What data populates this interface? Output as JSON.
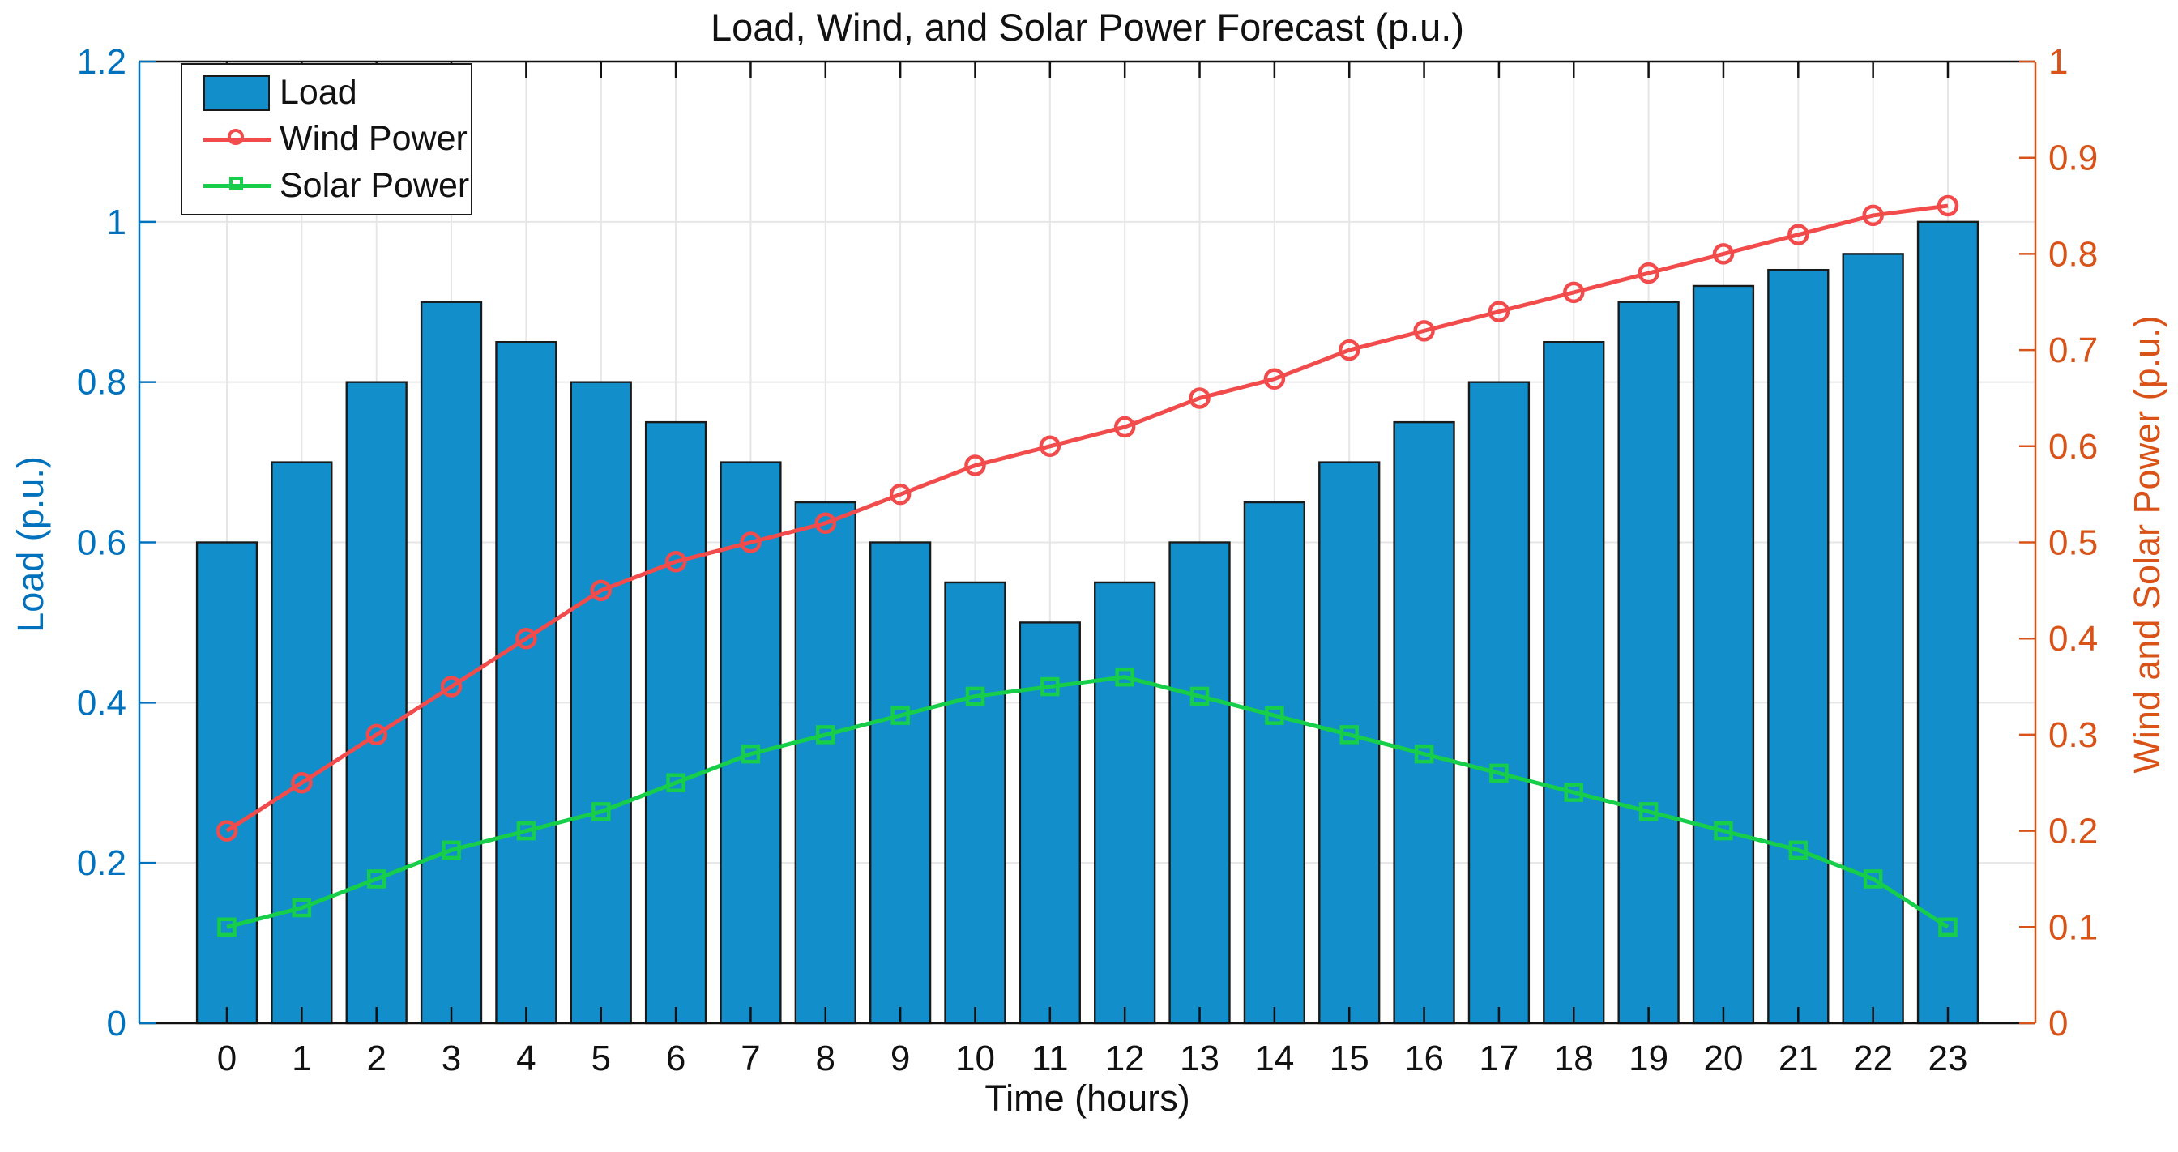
{
  "title": "Load, Wind, and Solar Power Forecast (p.u.)",
  "xlabel": "Time (hours)",
  "ylabel_left": "Load (p.u.)",
  "ylabel_right": "Wind and Solar Power (p.u.)",
  "legend": {
    "load_label": "Load",
    "wind_label": "Wind Power",
    "solar_label": "Solar Power"
  },
  "colors": {
    "bar_fill": "#128FCB",
    "bar_edge": "#1a1a1a",
    "wind_line": "#F24B4B",
    "solar_line": "#16CE49",
    "left_axis": "#0072BD",
    "right_axis": "#D95319",
    "grid": "#E6E6E6",
    "axis_black": "#111111",
    "text": "#111111"
  },
  "chart_data": {
    "type": "bar",
    "subtype": "bar + two lines, dual y-axes",
    "title": "Load, Wind, and Solar Power Forecast (p.u.)",
    "xlabel": "Time (hours)",
    "x": [
      0,
      1,
      2,
      3,
      4,
      5,
      6,
      7,
      8,
      9,
      10,
      11,
      12,
      13,
      14,
      15,
      16,
      17,
      18,
      19,
      20,
      21,
      22,
      23
    ],
    "xtick_labels": [
      "0",
      "1",
      "2",
      "3",
      "4",
      "5",
      "6",
      "7",
      "8",
      "9",
      "10",
      "11",
      "12",
      "13",
      "14",
      "15",
      "16",
      "17",
      "18",
      "19",
      "20",
      "21",
      "22",
      "23"
    ],
    "series": [
      {
        "name": "Load",
        "type": "bar",
        "axis": "left",
        "marker": "none",
        "values": [
          0.6,
          0.7,
          0.8,
          0.9,
          0.85,
          0.8,
          0.75,
          0.7,
          0.65,
          0.6,
          0.55,
          0.5,
          0.55,
          0.6,
          0.65,
          0.7,
          0.75,
          0.8,
          0.85,
          0.9,
          0.92,
          0.94,
          0.96,
          1.0
        ]
      },
      {
        "name": "Wind Power",
        "type": "line",
        "axis": "right",
        "marker": "circle",
        "values": [
          0.2,
          0.25,
          0.3,
          0.35,
          0.4,
          0.45,
          0.48,
          0.5,
          0.52,
          0.55,
          0.58,
          0.6,
          0.62,
          0.65,
          0.67,
          0.7,
          0.72,
          0.74,
          0.76,
          0.78,
          0.8,
          0.82,
          0.84,
          0.85
        ]
      },
      {
        "name": "Solar Power",
        "type": "line",
        "axis": "right",
        "marker": "square",
        "values": [
          0.1,
          0.12,
          0.15,
          0.18,
          0.2,
          0.22,
          0.25,
          0.28,
          0.3,
          0.32,
          0.34,
          0.35,
          0.36,
          0.34,
          0.32,
          0.3,
          0.28,
          0.26,
          0.24,
          0.22,
          0.2,
          0.18,
          0.15,
          0.1
        ]
      }
    ],
    "left_axis": {
      "label": "Load (p.u.)",
      "range": [
        0,
        1.2
      ],
      "tick_labels": [
        "0",
        "0.2",
        "0.4",
        "0.6",
        "0.8",
        "1",
        "1.2"
      ]
    },
    "right_axis": {
      "label": "Wind and Solar Power (p.u.)",
      "range": [
        0,
        1
      ],
      "tick_labels": [
        "0",
        "0.1",
        "0.2",
        "0.3",
        "0.4",
        "0.5",
        "0.6",
        "0.7",
        "0.8",
        "0.9",
        "1"
      ]
    },
    "grid": "on",
    "legend_position": "northwest",
    "bar_width_fraction": 0.8
  }
}
